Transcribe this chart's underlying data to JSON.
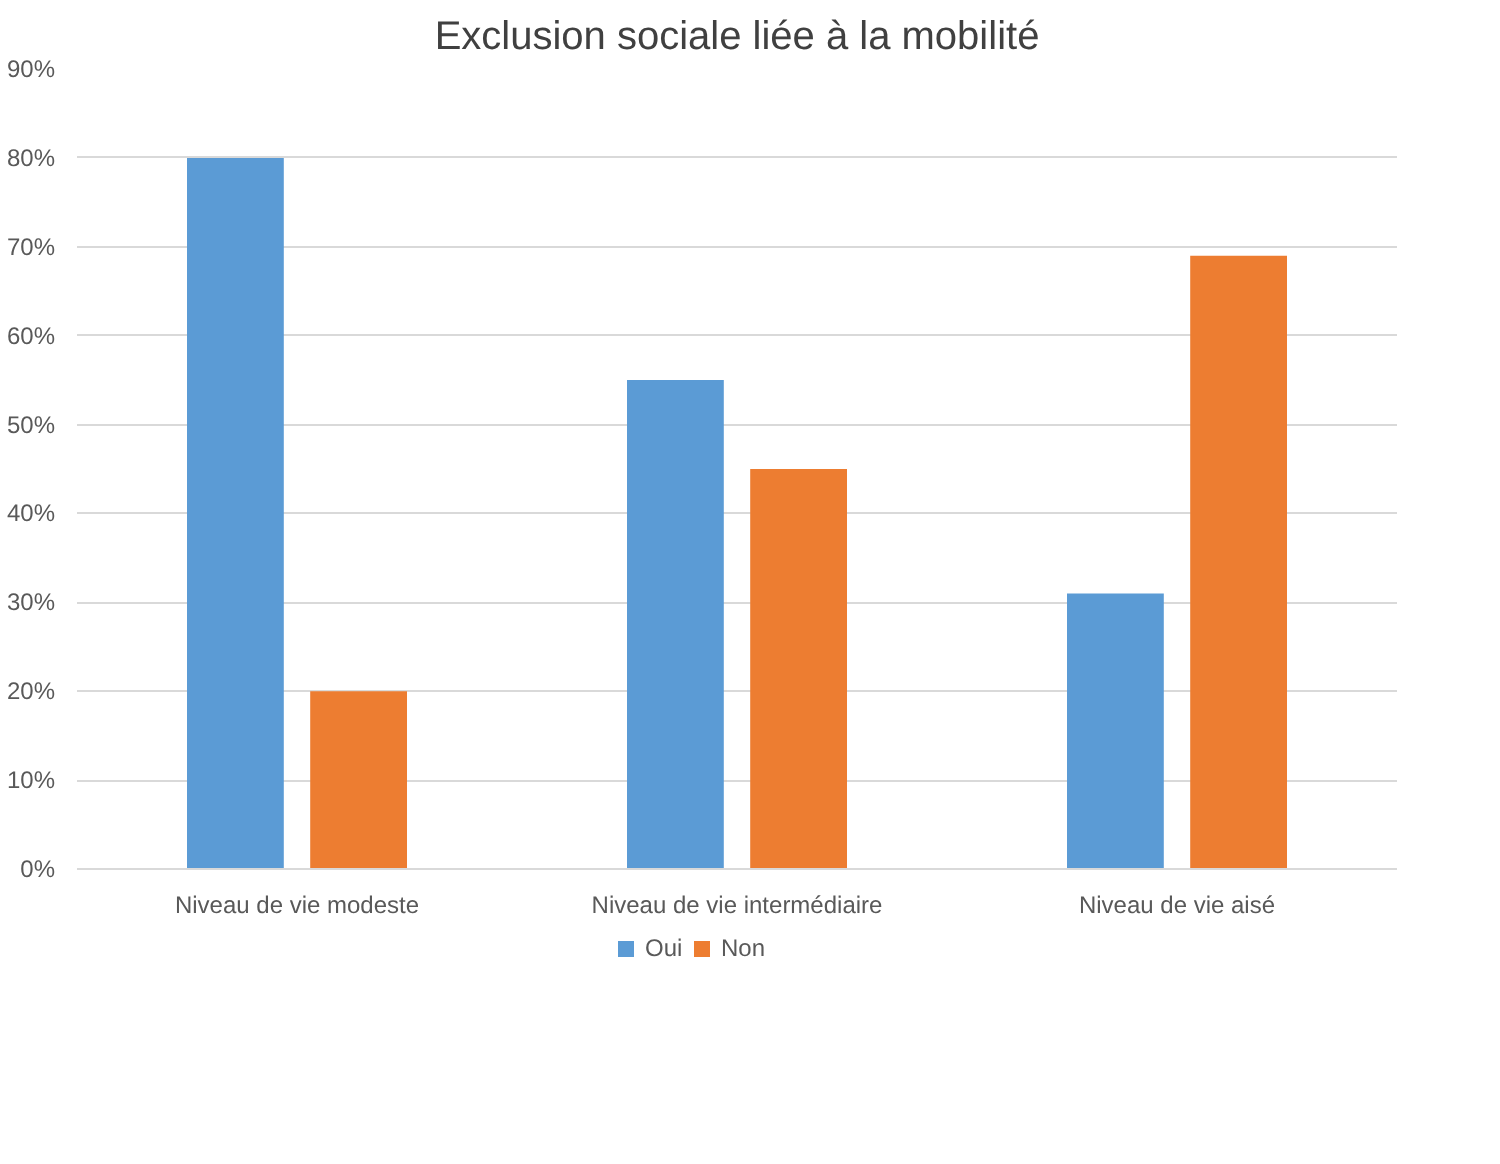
{
  "chart_data": {
    "type": "bar",
    "title": "Exclusion sociale liée à la mobilité",
    "categories": [
      "Niveau de vie modeste",
      "Niveau de vie intermédiaire",
      "Niveau de vie aisé"
    ],
    "series": [
      {
        "name": "Oui",
        "color": "#5b9bd5",
        "values": [
          80,
          55,
          31
        ]
      },
      {
        "name": "Non",
        "color": "#ed7d31",
        "values": [
          20,
          45,
          69
        ]
      }
    ],
    "ylim": [
      0,
      90
    ],
    "yticks": [
      {
        "value": 0,
        "label": "0%"
      },
      {
        "value": 10,
        "label": "10%"
      },
      {
        "value": 20,
        "label": "20%"
      },
      {
        "value": 30,
        "label": "30%"
      },
      {
        "value": 40,
        "label": "40%"
      },
      {
        "value": 50,
        "label": "50%"
      },
      {
        "value": 60,
        "label": "60%"
      },
      {
        "value": 70,
        "label": "70%"
      },
      {
        "value": 80,
        "label": "80%"
      },
      {
        "value": 90,
        "label": "90%"
      }
    ],
    "grid": "y",
    "legend": "bottom"
  }
}
